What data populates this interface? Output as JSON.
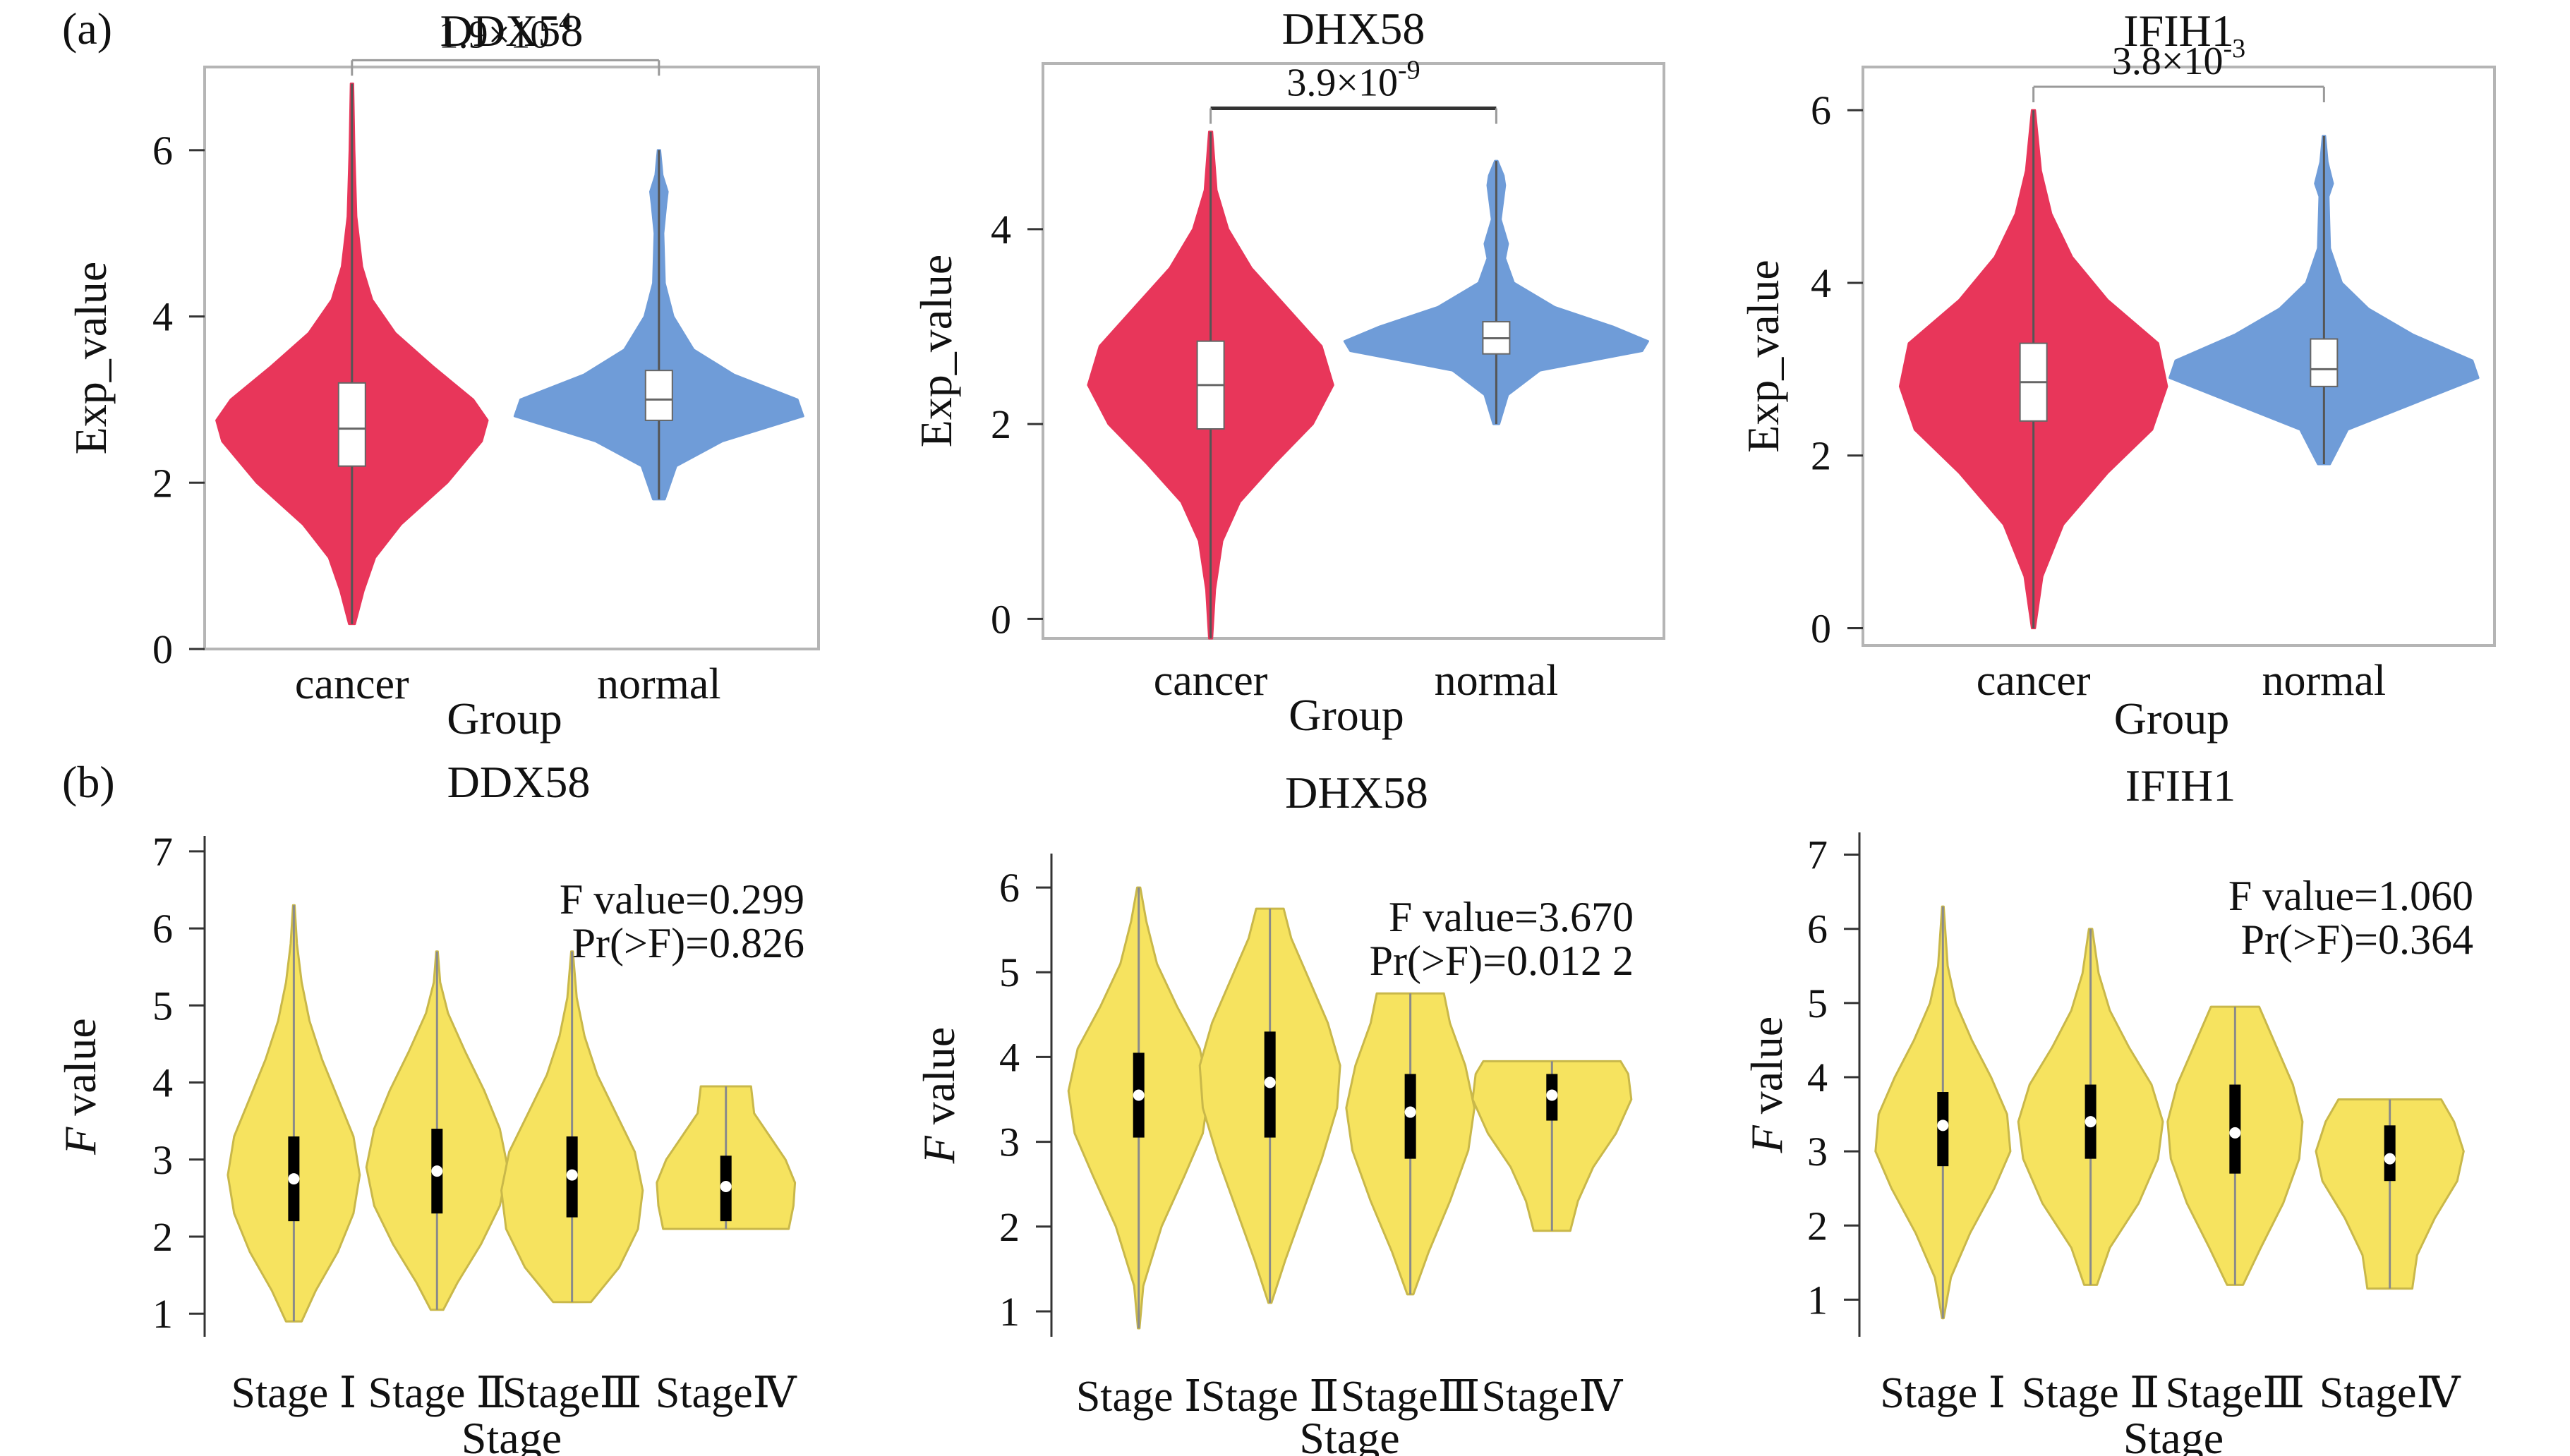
{
  "panel_labels": {
    "a": "(a)",
    "b": "(b)"
  },
  "chart_data": [
    {
      "type": "violin",
      "row": "a",
      "title": "DDX58",
      "xlabel": "Group",
      "ylabel": "Exp_value",
      "categories": [
        "cancer",
        "normal"
      ],
      "yticks": [
        "0",
        "2",
        "4",
        "6"
      ],
      "ylim": [
        0,
        7
      ],
      "comparison": {
        "base": "1.9×10",
        "exp": "-4"
      },
      "violins": [
        {
          "name": "cancer",
          "color": "#e8365a",
          "min": 0.3,
          "max": 6.8,
          "q1": 2.2,
          "median": 2.65,
          "q3": 3.2,
          "shape": [
            [
              0.3,
              0.01
            ],
            [
              0.7,
              0.04
            ],
            [
              1.1,
              0.08
            ],
            [
              1.5,
              0.17
            ],
            [
              2,
              0.33
            ],
            [
              2.5,
              0.45
            ],
            [
              2.75,
              0.47
            ],
            [
              3,
              0.42
            ],
            [
              3.4,
              0.28
            ],
            [
              3.8,
              0.15
            ],
            [
              4.2,
              0.07
            ],
            [
              4.6,
              0.035
            ],
            [
              5.2,
              0.015
            ],
            [
              6,
              0.008
            ],
            [
              6.8,
              0.004
            ]
          ]
        },
        {
          "name": "normal",
          "color": "#6f9cd8",
          "min": 1.8,
          "max": 6.0,
          "q1": 2.75,
          "median": 3.0,
          "q3": 3.35,
          "shape": [
            [
              1.8,
              0.02
            ],
            [
              2.2,
              0.06
            ],
            [
              2.5,
              0.22
            ],
            [
              2.8,
              0.5
            ],
            [
              3,
              0.48
            ],
            [
              3.3,
              0.26
            ],
            [
              3.6,
              0.12
            ],
            [
              4,
              0.05
            ],
            [
              4.4,
              0.02
            ],
            [
              5,
              0.015
            ],
            [
              5.35,
              0.025
            ],
            [
              5.5,
              0.03
            ],
            [
              5.7,
              0.012
            ],
            [
              6,
              0.004
            ]
          ]
        }
      ]
    },
    {
      "type": "violin",
      "row": "a",
      "title": "DHX58",
      "xlabel": "Group",
      "ylabel": "Exp_value",
      "categories": [
        "cancer",
        "normal"
      ],
      "yticks": [
        "0",
        "2",
        "4"
      ],
      "ylim": [
        -0.2,
        5.7
      ],
      "comparison": {
        "base": "3.9×10",
        "exp": "-9"
      },
      "violins": [
        {
          "name": "cancer",
          "color": "#e8365a",
          "min": -0.2,
          "max": 5.0,
          "q1": 1.95,
          "median": 2.4,
          "q3": 2.85,
          "shape": [
            [
              -0.2,
              0.005
            ],
            [
              0.3,
              0.015
            ],
            [
              0.8,
              0.04
            ],
            [
              1.2,
              0.1
            ],
            [
              1.6,
              0.22
            ],
            [
              2,
              0.35
            ],
            [
              2.4,
              0.42
            ],
            [
              2.8,
              0.38
            ],
            [
              3.2,
              0.26
            ],
            [
              3.6,
              0.14
            ],
            [
              4,
              0.06
            ],
            [
              4.4,
              0.02
            ],
            [
              5,
              0.005
            ]
          ]
        },
        {
          "name": "normal",
          "color": "#6f9cd8",
          "min": 2.0,
          "max": 4.7,
          "q1": 2.72,
          "median": 2.88,
          "q3": 3.05,
          "shape": [
            [
              2,
              0.01
            ],
            [
              2.3,
              0.04
            ],
            [
              2.55,
              0.15
            ],
            [
              2.75,
              0.5
            ],
            [
              2.85,
              0.52
            ],
            [
              3,
              0.4
            ],
            [
              3.2,
              0.2
            ],
            [
              3.45,
              0.06
            ],
            [
              3.7,
              0.03
            ],
            [
              3.85,
              0.04
            ],
            [
              4.1,
              0.015
            ],
            [
              4.45,
              0.03
            ],
            [
              4.55,
              0.025
            ],
            [
              4.7,
              0.004
            ]
          ]
        }
      ]
    },
    {
      "type": "violin",
      "row": "a",
      "title": "IFIH1",
      "xlabel": "Group",
      "ylabel": "Exp_value",
      "categories": [
        "cancer",
        "normal"
      ],
      "yticks": [
        "0",
        "2",
        "4",
        "6"
      ],
      "ylim": [
        -0.2,
        6.5
      ],
      "comparison": {
        "base": "3.8×10",
        "exp": "-3"
      },
      "violins": [
        {
          "name": "cancer",
          "color": "#e8365a",
          "min": 0.0,
          "max": 6.0,
          "q1": 2.4,
          "median": 2.85,
          "q3": 3.3,
          "shape": [
            [
              0,
              0.005
            ],
            [
              0.6,
              0.03
            ],
            [
              1.2,
              0.1
            ],
            [
              1.8,
              0.25
            ],
            [
              2.3,
              0.4
            ],
            [
              2.8,
              0.45
            ],
            [
              3.3,
              0.42
            ],
            [
              3.8,
              0.25
            ],
            [
              4.3,
              0.13
            ],
            [
              4.8,
              0.06
            ],
            [
              5.3,
              0.025
            ],
            [
              6,
              0.005
            ]
          ]
        },
        {
          "name": "normal",
          "color": "#6f9cd8",
          "min": 1.9,
          "max": 5.7,
          "q1": 2.8,
          "median": 3.0,
          "q3": 3.35,
          "shape": [
            [
              1.9,
              0.02
            ],
            [
              2.3,
              0.08
            ],
            [
              2.6,
              0.3
            ],
            [
              2.9,
              0.52
            ],
            [
              3.1,
              0.5
            ],
            [
              3.4,
              0.3
            ],
            [
              3.7,
              0.15
            ],
            [
              4,
              0.06
            ],
            [
              4.4,
              0.02
            ],
            [
              5,
              0.015
            ],
            [
              5.15,
              0.03
            ],
            [
              5.4,
              0.012
            ],
            [
              5.7,
              0.004
            ]
          ]
        }
      ]
    },
    {
      "type": "violin",
      "row": "b",
      "title": "DDX58",
      "xlabel": "Stage",
      "ylabel_italic": "F",
      "ylabel_rest": " value",
      "categories": [
        "Stage Ⅰ",
        "Stage Ⅱ",
        "StageⅢ",
        "StageⅣ"
      ],
      "yticks": [
        "1",
        "2",
        "3",
        "4",
        "5",
        "6",
        "7"
      ],
      "ylim": [
        0.7,
        7.2
      ],
      "stat_lines": [
        "F value=0.299",
        "Pr(>F)=0.826"
      ],
      "violins": [
        {
          "name": "Stage Ⅰ",
          "color": "#f6e35f",
          "min": 0.9,
          "max": 6.3,
          "q1": 2.2,
          "median": 2.75,
          "q3": 3.3,
          "shape": [
            [
              0.9,
              0.05
            ],
            [
              1.3,
              0.14
            ],
            [
              1.8,
              0.28
            ],
            [
              2.3,
              0.38
            ],
            [
              2.8,
              0.42
            ],
            [
              3.3,
              0.38
            ],
            [
              3.8,
              0.28
            ],
            [
              4.3,
              0.18
            ],
            [
              4.8,
              0.1
            ],
            [
              5.3,
              0.05
            ],
            [
              5.8,
              0.02
            ],
            [
              6.3,
              0.005
            ]
          ]
        },
        {
          "name": "Stage Ⅱ",
          "color": "#f6e35f",
          "min": 1.05,
          "max": 5.7,
          "q1": 2.3,
          "median": 2.85,
          "q3": 3.4,
          "shape": [
            [
              1.05,
              0.04
            ],
            [
              1.4,
              0.13
            ],
            [
              1.9,
              0.28
            ],
            [
              2.4,
              0.4
            ],
            [
              2.9,
              0.45
            ],
            [
              3.4,
              0.4
            ],
            [
              3.9,
              0.3
            ],
            [
              4.4,
              0.18
            ],
            [
              4.9,
              0.07
            ],
            [
              5.3,
              0.02
            ],
            [
              5.7,
              0.005
            ]
          ]
        },
        {
          "name": "StageⅢ",
          "color": "#f6e35f",
          "min": 1.15,
          "max": 5.7,
          "q1": 2.25,
          "median": 2.8,
          "q3": 3.3,
          "shape": [
            [
              1.15,
              0.12
            ],
            [
              1.6,
              0.3
            ],
            [
              2.1,
              0.42
            ],
            [
              2.6,
              0.45
            ],
            [
              3.1,
              0.4
            ],
            [
              3.6,
              0.28
            ],
            [
              4.1,
              0.16
            ],
            [
              4.6,
              0.08
            ],
            [
              5.1,
              0.03
            ],
            [
              5.7,
              0.005
            ]
          ]
        },
        {
          "name": "StageⅣ",
          "color": "#f6e35f",
          "min": 2.1,
          "max": 3.95,
          "q1": 2.2,
          "median": 2.65,
          "q3": 3.05,
          "shape": [
            [
              2.1,
              0.4
            ],
            [
              2.4,
              0.43
            ],
            [
              2.7,
              0.44
            ],
            [
              3,
              0.38
            ],
            [
              3.3,
              0.28
            ],
            [
              3.6,
              0.18
            ],
            [
              3.95,
              0.16
            ]
          ]
        }
      ]
    },
    {
      "type": "violin",
      "row": "b",
      "title": "DHX58",
      "xlabel": "Stage",
      "ylabel_italic": "F",
      "ylabel_rest": " value",
      "categories": [
        "Stage Ⅰ",
        "Stage Ⅱ",
        "StageⅢ",
        "StageⅣ"
      ],
      "yticks": [
        "1",
        "2",
        "3",
        "4",
        "5",
        "6"
      ],
      "ylim": [
        0.7,
        6.4
      ],
      "stat_lines": [
        "F value=3.670",
        "Pr(>F)=0.012 2"
      ],
      "violins": [
        {
          "name": "Stage Ⅰ",
          "color": "#f6e35f",
          "min": 0.8,
          "max": 6.0,
          "q1": 3.05,
          "median": 3.55,
          "q3": 4.05,
          "shape": [
            [
              0.8,
              0.005
            ],
            [
              1.3,
              0.03
            ],
            [
              2,
              0.15
            ],
            [
              2.6,
              0.3
            ],
            [
              3.1,
              0.42
            ],
            [
              3.6,
              0.46
            ],
            [
              4.1,
              0.4
            ],
            [
              4.6,
              0.25
            ],
            [
              5.1,
              0.12
            ],
            [
              5.6,
              0.05
            ],
            [
              6,
              0.01
            ]
          ]
        },
        {
          "name": "Stage Ⅱ",
          "color": "#f6e35f",
          "min": 1.1,
          "max": 5.75,
          "q1": 3.05,
          "median": 3.7,
          "q3": 4.3,
          "shape": [
            [
              1.1,
              0.01
            ],
            [
              1.6,
              0.1
            ],
            [
              2.2,
              0.22
            ],
            [
              2.8,
              0.34
            ],
            [
              3.4,
              0.44
            ],
            [
              3.9,
              0.46
            ],
            [
              4.4,
              0.38
            ],
            [
              4.9,
              0.26
            ],
            [
              5.4,
              0.14
            ],
            [
              5.75,
              0.09
            ]
          ]
        },
        {
          "name": "StageⅢ",
          "color": "#f6e35f",
          "min": 1.2,
          "max": 4.75,
          "q1": 2.8,
          "median": 3.35,
          "q3": 3.8,
          "shape": [
            [
              1.2,
              0.02
            ],
            [
              1.7,
              0.12
            ],
            [
              2.3,
              0.26
            ],
            [
              2.9,
              0.38
            ],
            [
              3.4,
              0.42
            ],
            [
              3.9,
              0.36
            ],
            [
              4.4,
              0.26
            ],
            [
              4.75,
              0.22
            ]
          ]
        },
        {
          "name": "StageⅣ",
          "color": "#f6e35f",
          "min": 1.95,
          "max": 3.95,
          "q1": 3.25,
          "median": 3.55,
          "q3": 3.8,
          "shape": [
            [
              1.95,
              0.12
            ],
            [
              2.3,
              0.17
            ],
            [
              2.7,
              0.27
            ],
            [
              3.1,
              0.42
            ],
            [
              3.5,
              0.52
            ],
            [
              3.8,
              0.5
            ],
            [
              3.95,
              0.45
            ]
          ]
        }
      ]
    },
    {
      "type": "violin",
      "row": "b",
      "title": "IFIH1",
      "xlabel": "Stage",
      "ylabel_italic": "F",
      "ylabel_rest": " value",
      "categories": [
        "Stage Ⅰ",
        "Stage Ⅱ",
        "StageⅢ",
        "StageⅣ"
      ],
      "yticks": [
        "1",
        "2",
        "3",
        "4",
        "5",
        "6",
        "7"
      ],
      "ylim": [
        0.5,
        7.3
      ],
      "stat_lines": [
        "F value=1.060",
        "Pr(>F)=0.364"
      ],
      "violins": [
        {
          "name": "Stage Ⅰ",
          "color": "#f6e35f",
          "min": 0.75,
          "max": 6.3,
          "q1": 2.8,
          "median": 3.35,
          "q3": 3.8,
          "shape": [
            [
              0.75,
              0.005
            ],
            [
              1.3,
              0.05
            ],
            [
              1.9,
              0.17
            ],
            [
              2.5,
              0.32
            ],
            [
              3,
              0.42
            ],
            [
              3.5,
              0.4
            ],
            [
              4,
              0.3
            ],
            [
              4.5,
              0.18
            ],
            [
              5,
              0.08
            ],
            [
              5.5,
              0.03
            ],
            [
              6.3,
              0.005
            ]
          ]
        },
        {
          "name": "Stage Ⅱ",
          "color": "#f6e35f",
          "min": 1.2,
          "max": 6.0,
          "q1": 2.9,
          "median": 3.4,
          "q3": 3.9,
          "shape": [
            [
              1.2,
              0.04
            ],
            [
              1.7,
              0.12
            ],
            [
              2.3,
              0.3
            ],
            [
              2.9,
              0.42
            ],
            [
              3.4,
              0.45
            ],
            [
              3.9,
              0.38
            ],
            [
              4.4,
              0.24
            ],
            [
              4.9,
              0.12
            ],
            [
              5.4,
              0.05
            ],
            [
              6,
              0.01
            ]
          ]
        },
        {
          "name": "StageⅢ",
          "color": "#f6e35f",
          "min": 1.2,
          "max": 4.95,
          "q1": 2.7,
          "median": 3.25,
          "q3": 3.9,
          "shape": [
            [
              1.2,
              0.05
            ],
            [
              1.7,
              0.16
            ],
            [
              2.3,
              0.3
            ],
            [
              2.9,
              0.4
            ],
            [
              3.4,
              0.42
            ],
            [
              3.9,
              0.36
            ],
            [
              4.4,
              0.26
            ],
            [
              4.95,
              0.15
            ]
          ]
        },
        {
          "name": "StageⅣ",
          "color": "#f6e35f",
          "min": 1.15,
          "max": 3.7,
          "q1": 2.6,
          "median": 2.9,
          "q3": 3.35,
          "shape": [
            [
              1.15,
              0.14
            ],
            [
              1.6,
              0.17
            ],
            [
              2.1,
              0.28
            ],
            [
              2.6,
              0.42
            ],
            [
              3,
              0.46
            ],
            [
              3.4,
              0.4
            ],
            [
              3.7,
              0.32
            ]
          ]
        }
      ]
    }
  ]
}
